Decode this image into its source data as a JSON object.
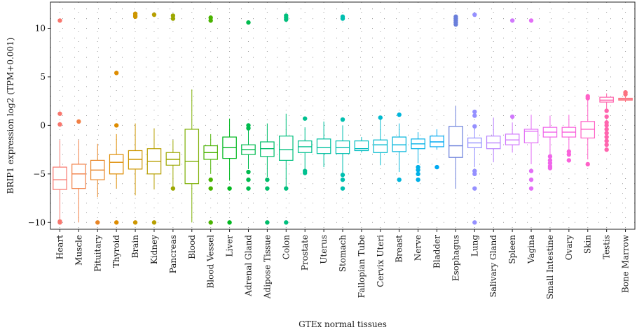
{
  "chart_data": {
    "type": "boxplot",
    "xlabel": "GTEx normal tissues",
    "ylabel": "BRIP1 expression log2 (TPM+0.001)",
    "ylim": [
      -10.7,
      12.7
    ],
    "yticks": [
      -10,
      -5,
      0,
      5,
      10
    ],
    "grid": "dotted",
    "legend": "none",
    "categories": [
      {
        "name": "Heart",
        "color": "#f8766d",
        "min": -10,
        "q1": -6.6,
        "median": -5.6,
        "q3": -4.3,
        "max": -1.5,
        "outliers": [
          10.8,
          1.2,
          0.1,
          -9.9,
          -10
        ]
      },
      {
        "name": "Muscle",
        "color": "#f17f44",
        "min": -10,
        "q1": -6.5,
        "median": -5.0,
        "q3": -4.0,
        "max": -1.5,
        "outliers": [
          0.4
        ]
      },
      {
        "name": "Pituitary",
        "color": "#e88526",
        "min": -7.4,
        "q1": -5.6,
        "median": -4.6,
        "q3": -3.6,
        "max": -1.9,
        "outliers": [
          -10
        ]
      },
      {
        "name": "Thyroid",
        "color": "#de8c00",
        "min": -6.5,
        "q1": -5.0,
        "median": -3.8,
        "q3": -3.0,
        "max": -0.9,
        "outliers": [
          5.4,
          0.0,
          -10
        ]
      },
      {
        "name": "Brain",
        "color": "#cd9600",
        "min": -7.2,
        "q1": -4.5,
        "median": -3.5,
        "q3": -2.6,
        "max": 0.2,
        "outliers": [
          11.5,
          11.3,
          11.2,
          -10
        ]
      },
      {
        "name": "Kidney",
        "color": "#b79f00",
        "min": -6.6,
        "q1": -5.0,
        "median": -3.7,
        "q3": -2.4,
        "max": -0.3,
        "outliers": [
          11.4,
          -10
        ]
      },
      {
        "name": "Pancreas",
        "color": "#9ca700",
        "min": -6.5,
        "q1": -4.1,
        "median": -3.5,
        "q3": -2.8,
        "max": -1.5,
        "outliers": [
          11.3,
          11.0,
          -6.5
        ]
      },
      {
        "name": "Blood",
        "color": "#7cae00",
        "min": -10,
        "q1": -6.0,
        "median": -3.7,
        "q3": -0.4,
        "max": 3.7,
        "outliers": []
      },
      {
        "name": "Blood Vessel",
        "color": "#49b300",
        "min": -5.0,
        "q1": -3.5,
        "median": -2.8,
        "q3": -2.1,
        "max": -0.9,
        "outliers": [
          11.1,
          10.8,
          -5.6,
          -6.5,
          -10
        ]
      },
      {
        "name": "Liver",
        "color": "#00b81f",
        "min": -5.7,
        "q1": -3.4,
        "median": -2.3,
        "q3": -1.2,
        "max": 0.7,
        "outliers": [
          -6.5,
          -10
        ]
      },
      {
        "name": "Adrenal Gland",
        "color": "#00bb4e",
        "min": -4.5,
        "q1": -3.0,
        "median": -2.5,
        "q3": -2.0,
        "max": -0.5,
        "outliers": [
          10.6,
          0.0,
          -0.3,
          -4.8,
          -5.6,
          -6.5
        ]
      },
      {
        "name": "Adipose Tissue",
        "color": "#00bd6a",
        "min": -5.3,
        "q1": -3.2,
        "median": -2.4,
        "q3": -1.7,
        "max": 0.2,
        "outliers": [
          -5.6,
          -6.5,
          -10
        ]
      },
      {
        "name": "Colon",
        "color": "#00bf7d",
        "min": -6.3,
        "q1": -3.6,
        "median": -2.5,
        "q3": -1.1,
        "max": 1.2,
        "outliers": [
          11.3,
          11.1,
          10.9,
          -6.5,
          -10
        ]
      },
      {
        "name": "Prostate",
        "color": "#00c08f",
        "min": -4.6,
        "q1": -2.8,
        "median": -2.2,
        "q3": -1.6,
        "max": -0.2,
        "outliers": [
          0.7,
          -4.7,
          -4.9
        ]
      },
      {
        "name": "Uterus",
        "color": "#00c0a0",
        "min": -4.3,
        "q1": -2.9,
        "median": -2.3,
        "q3": -1.4,
        "max": 0.4,
        "outliers": []
      },
      {
        "name": "Stomach",
        "color": "#00bfb0",
        "min": -5.0,
        "q1": -2.9,
        "median": -2.3,
        "q3": -1.6,
        "max": 0.0,
        "outliers": [
          11.2,
          11.0,
          0.6,
          -5.1,
          -5.6,
          -6.5
        ]
      },
      {
        "name": "Fallopian Tube",
        "color": "#00bdc0",
        "min": -2.8,
        "q1": -2.6,
        "median": -2.4,
        "q3": -1.6,
        "max": -1.2,
        "outliers": []
      },
      {
        "name": "Cervix Uteri",
        "color": "#00bace",
        "min": -4.1,
        "q1": -2.8,
        "median": -2.0,
        "q3": -1.5,
        "max": 0.7,
        "outliers": [
          0.8
        ]
      },
      {
        "name": "Breast",
        "color": "#00b5db",
        "min": -4.8,
        "q1": -2.7,
        "median": -2.0,
        "q3": -1.2,
        "max": 0.2,
        "outliers": [
          1.1,
          -5.6
        ]
      },
      {
        "name": "Nerve",
        "color": "#00b0e7",
        "min": -3.9,
        "q1": -2.4,
        "median": -1.9,
        "q3": -1.4,
        "max": -0.7,
        "outliers": [
          -4.3,
          -4.6,
          -5.0,
          -5.6
        ]
      },
      {
        "name": "Bladder",
        "color": "#00a9f2",
        "min": -2.5,
        "q1": -2.2,
        "median": -1.7,
        "q3": -1.1,
        "max": -0.4,
        "outliers": [
          -4.3
        ]
      },
      {
        "name": "Esophagus",
        "color": "#6a7fdb",
        "min": -6.5,
        "q1": -3.3,
        "median": -2.1,
        "q3": -0.1,
        "max": 2.0,
        "outliers": [
          11.2,
          11.0,
          10.8,
          10.6,
          10.4
        ]
      },
      {
        "name": "Lung",
        "color": "#9590ff",
        "min": -4.3,
        "q1": -2.3,
        "median": -1.8,
        "q3": -1.3,
        "max": -0.2,
        "outliers": [
          11.4,
          1.4,
          1.0,
          -0.1,
          -4.7,
          -5.0,
          -6.5,
          -10
        ]
      },
      {
        "name": "Salivary Gland",
        "color": "#b983ff",
        "min": -3.8,
        "q1": -2.4,
        "median": -1.8,
        "q3": -1.1,
        "max": 0.8,
        "outliers": []
      },
      {
        "name": "Spleen",
        "color": "#d078fc",
        "min": -2.8,
        "q1": -2.0,
        "median": -1.5,
        "q3": -0.9,
        "max": 0.3,
        "outliers": [
          10.8,
          0.9
        ]
      },
      {
        "name": "Vagina",
        "color": "#e36ef6",
        "min": -4.0,
        "q1": -1.8,
        "median": -0.6,
        "q3": -0.4,
        "max": 1.1,
        "outliers": [
          10.8,
          -4.7,
          -5.6,
          -6.5
        ]
      },
      {
        "name": "Small Intestine",
        "color": "#f066ea",
        "min": -3.0,
        "q1": -1.2,
        "median": -0.7,
        "q3": -0.2,
        "max": 1.0,
        "outliers": [
          -3.2,
          -3.6,
          -3.9,
          -4.2,
          -4.4
        ]
      },
      {
        "name": "Ovary",
        "color": "#fa62db",
        "min": -2.5,
        "q1": -1.2,
        "median": -0.7,
        "q3": -0.2,
        "max": 1.1,
        "outliers": [
          -2.7,
          -3.0,
          -3.6
        ]
      },
      {
        "name": "Skin",
        "color": "#ff61c7",
        "min": -3.5,
        "q1": -1.3,
        "median": -0.4,
        "q3": 0.4,
        "max": 2.7,
        "outliers": [
          3.0,
          2.8,
          -4.0
        ]
      },
      {
        "name": "Testis",
        "color": "#ff65ae",
        "min": 1.7,
        "q1": 2.4,
        "median": 2.6,
        "q3": 2.9,
        "max": 3.3,
        "outliers": [
          1.5,
          0.9,
          0.3,
          0.0,
          -0.4,
          -0.8,
          -1.2,
          -1.6,
          -2.0,
          -2.5
        ]
      },
      {
        "name": "Bone Marrow",
        "color": "#fc717f",
        "min": 2.4,
        "q1": 2.6,
        "median": 2.7,
        "q3": 2.8,
        "max": 3.0,
        "outliers": [
          3.4,
          3.2
        ]
      }
    ]
  }
}
